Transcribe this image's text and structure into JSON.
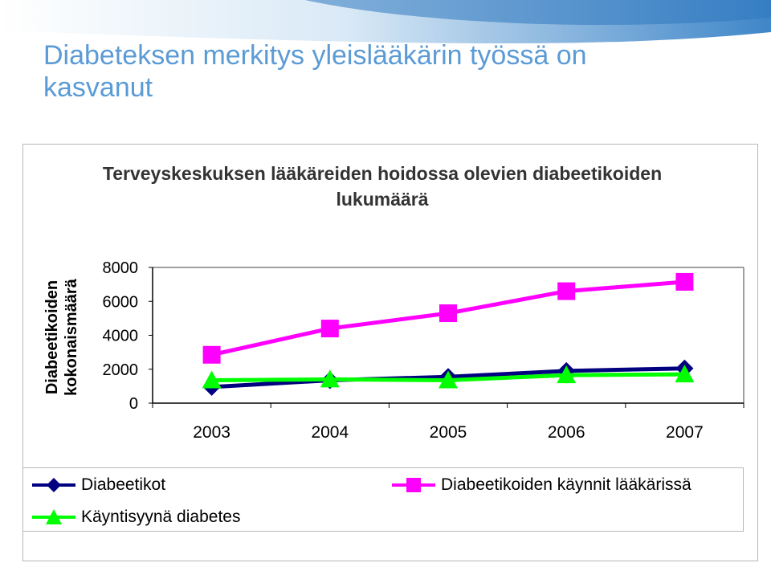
{
  "slide": {
    "title": "Diabeteksen merkitys yleislääkärin työssä on kasvanut"
  },
  "colors": {
    "title": "#5b9bd5",
    "diabeetikot": "#000080",
    "kaynnit": "#ff00ff",
    "kayntisyy": "#00ff00"
  },
  "chart_data": {
    "type": "line",
    "title": "Terveyskeskuksen lääkäreiden hoidossa olevien diabeetikoiden lukumäärä",
    "xlabel": "",
    "ylabel": [
      "Diabeetikoiden",
      "kokonaismäärä"
    ],
    "categories": [
      "2003",
      "2004",
      "2005",
      "2006",
      "2007"
    ],
    "ylim": [
      0,
      8000
    ],
    "yticks": [
      "0",
      "2000",
      "4000",
      "6000",
      "8000"
    ],
    "grid": false,
    "legend_position": "bottom",
    "series": [
      {
        "name": "Diabeetikot",
        "marker": "diamond",
        "color": "#000080",
        "values": [
          950,
          1350,
          1550,
          1900,
          2050
        ]
      },
      {
        "name": "Diabeetikoiden käynnit lääkärissä",
        "marker": "square",
        "color": "#ff00ff",
        "values": [
          2850,
          4400,
          5300,
          6600,
          7150
        ]
      },
      {
        "name": "Käyntisyynä diabetes",
        "marker": "triangle",
        "color": "#00ff00",
        "values": [
          1350,
          1400,
          1350,
          1650,
          1700
        ]
      }
    ]
  }
}
